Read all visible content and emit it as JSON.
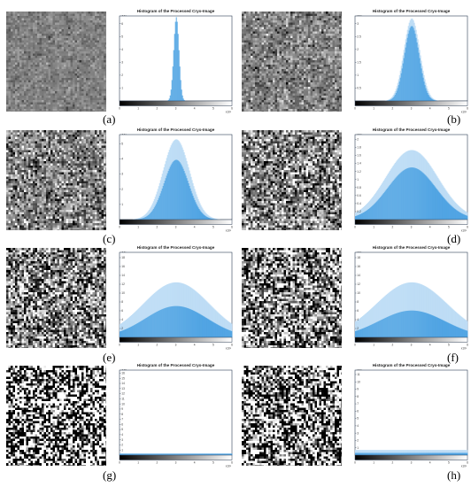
{
  "figure": {
    "histogram_title": "Histogram of the Processed Cryo-Image",
    "bar_color": "#3f9be0",
    "light_bar_color": "#a9d2f2",
    "axis_color": "#2f3f55"
  },
  "chart_data": [
    {
      "type": "bar",
      "label": "(a)",
      "title": "Histogram of the Processed Cryo-Image",
      "xlim": [
        0,
        255
      ],
      "x_tick_labels": [
        "0",
        "1",
        "2",
        "3",
        "4",
        "5",
        "6"
      ],
      "x_exponent": "x10²",
      "y_tick_labels": [
        "1",
        "2",
        "3",
        "4",
        "5",
        "6"
      ],
      "y_exponent": "x10⁴",
      "peak": 6.5,
      "ylim": [
        0,
        6.6
      ],
      "center": 128,
      "sigma": 6,
      "light_peak": 0,
      "noise": {
        "std": 18,
        "mean": 128,
        "density": 0
      }
    },
    {
      "type": "bar",
      "label": "(b)",
      "title": "Histogram of the Processed Cryo-Image",
      "xlim": [
        0,
        255
      ],
      "x_tick_labels": [
        "0",
        "1",
        "2",
        "3",
        "4",
        "5",
        "6"
      ],
      "x_exponent": "x10²",
      "y_tick_labels": [
        "0.5",
        "1",
        "1.5",
        "2",
        "2.5",
        "3"
      ],
      "y_exponent": "x10⁴",
      "peak": 3.0,
      "ylim": [
        0,
        3.4
      ],
      "center": 128,
      "sigma": 17,
      "light_peak": 3.3,
      "noise": {
        "std": 36,
        "mean": 128,
        "density": 0
      }
    },
    {
      "type": "bar",
      "label": "(c)",
      "title": "Histogram of the Processed Cryo-Image",
      "xlim": [
        0,
        255
      ],
      "x_tick_labels": [
        "0",
        "1",
        "2",
        "3",
        "4",
        "5",
        "6"
      ],
      "x_exponent": "x10²",
      "y_tick_labels": [
        "1",
        "2",
        "3",
        "4",
        "5"
      ],
      "y_exponent": "x10⁴",
      "peak": 3.8,
      "ylim": [
        0,
        5.4
      ],
      "center": 128,
      "sigma": 28,
      "light_peak": 5.1,
      "noise": {
        "std": 58,
        "mean": 128,
        "density": 0
      }
    },
    {
      "type": "bar",
      "label": "(d)",
      "title": "Histogram of the Processed Cryo-Image",
      "xlim": [
        0,
        255
      ],
      "x_tick_labels": [
        "0",
        "1",
        "2",
        "3",
        "4",
        "5",
        "6"
      ],
      "x_exponent": "x10²",
      "y_tick_labels": [
        "0.2",
        "0.4",
        "0.6",
        "0.8",
        "1",
        "1.2",
        "1.4",
        "1.6",
        "1.8",
        "2"
      ],
      "y_exponent": "x10⁴",
      "peak": 1.35,
      "ylim": [
        0,
        2.2
      ],
      "center": 128,
      "sigma": 55,
      "light_peak": 1.8,
      "noise": {
        "std": 80,
        "mean": 128,
        "density": 0
      }
    },
    {
      "type": "bar",
      "label": "(e)",
      "title": "Histogram of the Processed Cryo-Image",
      "xlim": [
        0,
        255
      ],
      "x_tick_labels": [
        "0",
        "1",
        "2",
        "3",
        "4",
        "5",
        "6"
      ],
      "x_exponent": "x10²",
      "y_tick_labels": [
        "2",
        "4",
        "6",
        "8",
        "10",
        "12",
        "14",
        "16",
        "18"
      ],
      "y_exponent": "x10³",
      "peak": 7.0,
      "ylim": [
        0,
        19
      ],
      "center": 128,
      "sigma": 70,
      "light_peak": 12.3,
      "noise": {
        "std": 105,
        "mean": 128,
        "density": 0
      }
    },
    {
      "type": "bar",
      "label": "(f)",
      "title": "Histogram of the Processed Cryo-Image",
      "xlim": [
        0,
        255
      ],
      "x_tick_labels": [
        "0",
        "1",
        "2",
        "3",
        "4",
        "5",
        "6"
      ],
      "x_exponent": "x10²",
      "y_tick_labels": [
        "2",
        "4",
        "6",
        "8",
        "10",
        "12",
        "14",
        "16",
        "18"
      ],
      "y_exponent": "x10³",
      "peak": 6.0,
      "ylim": [
        0,
        19
      ],
      "center": 128,
      "sigma": 75,
      "light_peak": 12.3,
      "noise": {
        "std": 130,
        "mean": 128,
        "density": 0
      }
    },
    {
      "type": "bar",
      "label": "(g)",
      "title": "Histogram of the Processed Cryo-Image",
      "xlim": [
        0,
        255
      ],
      "x_tick_labels": [
        "0",
        "1",
        "2",
        "3",
        "4",
        "5",
        "6"
      ],
      "x_exponent": "x10²",
      "y_tick_labels": [
        "1",
        "2",
        "3",
        "4",
        "5",
        "6",
        "7",
        "8",
        "9",
        "10",
        "11",
        "12",
        "13",
        "14",
        "15",
        "16"
      ],
      "y_exponent": "x10⁵",
      "peak": 0.3,
      "ylim": [
        0,
        16.5
      ],
      "center": 128,
      "sigma": 2000,
      "light_peak": 0,
      "noise": {
        "std": 400,
        "mean": 128,
        "density": 0
      }
    },
    {
      "type": "bar",
      "label": "(h)",
      "title": "Histogram of the Processed Cryo-Image",
      "xlim": [
        0,
        255
      ],
      "x_tick_labels": [
        "0",
        "1",
        "2",
        "3",
        "4",
        "5",
        "6"
      ],
      "x_exponent": "x10²",
      "y_tick_labels": [
        "1",
        "2",
        "3",
        "4",
        "5",
        "6",
        "7",
        "8",
        "9",
        "10",
        "11"
      ],
      "y_exponent": "x10⁴",
      "peak": 0.3,
      "ylim": [
        0,
        11.5
      ],
      "center": 128,
      "sigma": 2000,
      "light_peak": 0.7,
      "noise": {
        "std": 220,
        "mean": 128,
        "density": 0
      }
    }
  ]
}
